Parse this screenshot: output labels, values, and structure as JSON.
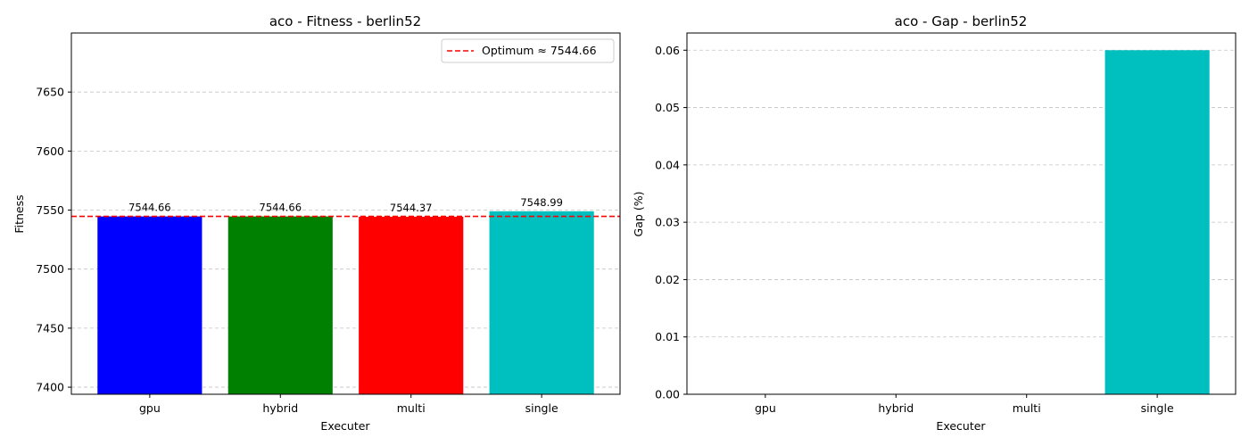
{
  "chart_data": [
    {
      "type": "bar",
      "title": "aco - Fitness - berlin52",
      "xlabel": "Executer",
      "ylabel": "Fitness",
      "categories": [
        "gpu",
        "hybrid",
        "multi",
        "single"
      ],
      "values": [
        7544.66,
        7544.66,
        7544.37,
        7548.99
      ],
      "data_labels": [
        "7544.66",
        "7544.66",
        "7544.37",
        "7548.99"
      ],
      "colors": [
        "#0000ff",
        "#008000",
        "#ff0000",
        "#00bfbf"
      ],
      "ylim": [
        7394,
        7700
      ],
      "yticks": [
        7400,
        7450,
        7500,
        7550,
        7600,
        7650
      ],
      "grid": "y-dashed",
      "reference_line": {
        "value": 7544.66,
        "label": "Optimum ≈ 7544.66",
        "color": "#ff0000",
        "style": "dashed"
      },
      "legend_position": "top-right"
    },
    {
      "type": "bar",
      "title": "aco - Gap - berlin52",
      "xlabel": "Executer",
      "ylabel": "Gap (%)",
      "categories": [
        "gpu",
        "hybrid",
        "multi",
        "single"
      ],
      "values": [
        0,
        0,
        0,
        0.06
      ],
      "colors": [
        "#0000ff",
        "#008000",
        "#ff0000",
        "#00bfbf"
      ],
      "ylim": [
        0,
        0.063
      ],
      "yticks": [
        0.0,
        0.01,
        0.02,
        0.03,
        0.04,
        0.05,
        0.06
      ],
      "ytick_labels": [
        "0.00",
        "0.01",
        "0.02",
        "0.03",
        "0.04",
        "0.05",
        "0.06"
      ],
      "grid": "y-dashed"
    }
  ]
}
